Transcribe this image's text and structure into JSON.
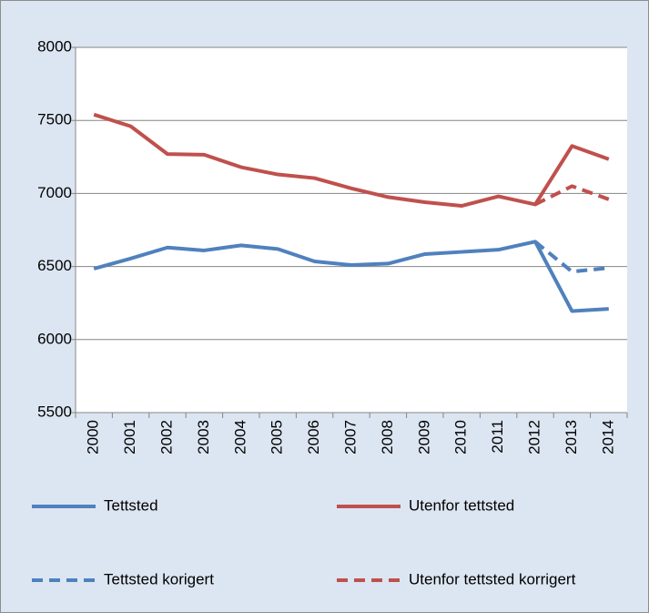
{
  "chart_data": {
    "type": "line",
    "categories": [
      "2000",
      "2001",
      "2002",
      "2003",
      "2004",
      "2005",
      "2006",
      "2007",
      "2008",
      "2009",
      "2010",
      "2011",
      "2012",
      "2013",
      "2014"
    ],
    "series": [
      {
        "name": "Tettsted",
        "color": "#4f81bd",
        "style": "solid",
        "values": [
          6485,
          6555,
          6630,
          6610,
          6645,
          6620,
          6535,
          6510,
          6520,
          6585,
          6600,
          6615,
          6670,
          6195,
          6210
        ]
      },
      {
        "name": "Utenfor tettsted",
        "color": "#c0504d",
        "style": "solid",
        "values": [
          7540,
          7460,
          7270,
          7265,
          7180,
          7130,
          7105,
          7035,
          6975,
          6940,
          6915,
          6980,
          6925,
          7325,
          7235
        ]
      },
      {
        "name": "Tettsted korigert",
        "color": "#4f81bd",
        "style": "dashed",
        "values": [
          null,
          null,
          null,
          null,
          null,
          null,
          null,
          null,
          null,
          null,
          null,
          null,
          6670,
          6465,
          6490
        ]
      },
      {
        "name": "Utenfor tettsted korrigert",
        "color": "#c0504d",
        "style": "dashed",
        "values": [
          null,
          null,
          null,
          null,
          null,
          null,
          null,
          null,
          null,
          null,
          null,
          null,
          6925,
          7050,
          6960
        ]
      }
    ],
    "ylim": [
      5500,
      8000
    ],
    "yticks": [
      5500,
      6000,
      6500,
      7000,
      7500,
      8000
    ],
    "grid": true,
    "legend": "bottom"
  }
}
